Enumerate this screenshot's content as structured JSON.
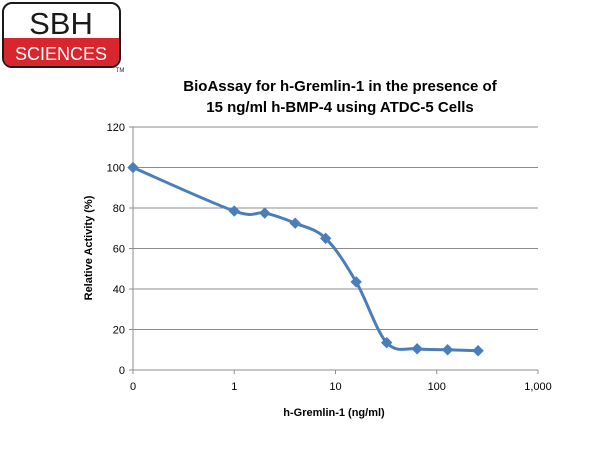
{
  "brand": {
    "line1": "SBH",
    "line2": "SCIENCES",
    "tm": "TM",
    "colors": {
      "red": "#d7262e",
      "black": "#1a1a1a",
      "white": "#ffffff"
    }
  },
  "chart_data": {
    "type": "line",
    "title_lines": [
      "BioAssay for h-Gremlin-1 in the presence of",
      "15 ng/ml h-BMP-4  using ATDC-5 Cells"
    ],
    "xlabel": "h-Gremlin-1 (ng/ml)",
    "ylabel": "Relative Activity (%)",
    "x_scale": "log",
    "x_ticks": [
      "0",
      "1",
      "10",
      "100",
      "1,000"
    ],
    "y_ticks": [
      "0",
      "20",
      "40",
      "60",
      "80",
      "100",
      "120"
    ],
    "ylim": [
      0,
      120
    ],
    "grid": "horizontal",
    "marker": "diamond",
    "line_color": "#4a7ebb",
    "series": [
      {
        "x": [
          0,
          1,
          2,
          4,
          8,
          16,
          32,
          64,
          128,
          256
        ],
        "y": [
          100,
          78.5,
          77.5,
          72.5,
          65,
          43.5,
          13.5,
          10.5,
          10,
          9.5
        ]
      }
    ]
  }
}
